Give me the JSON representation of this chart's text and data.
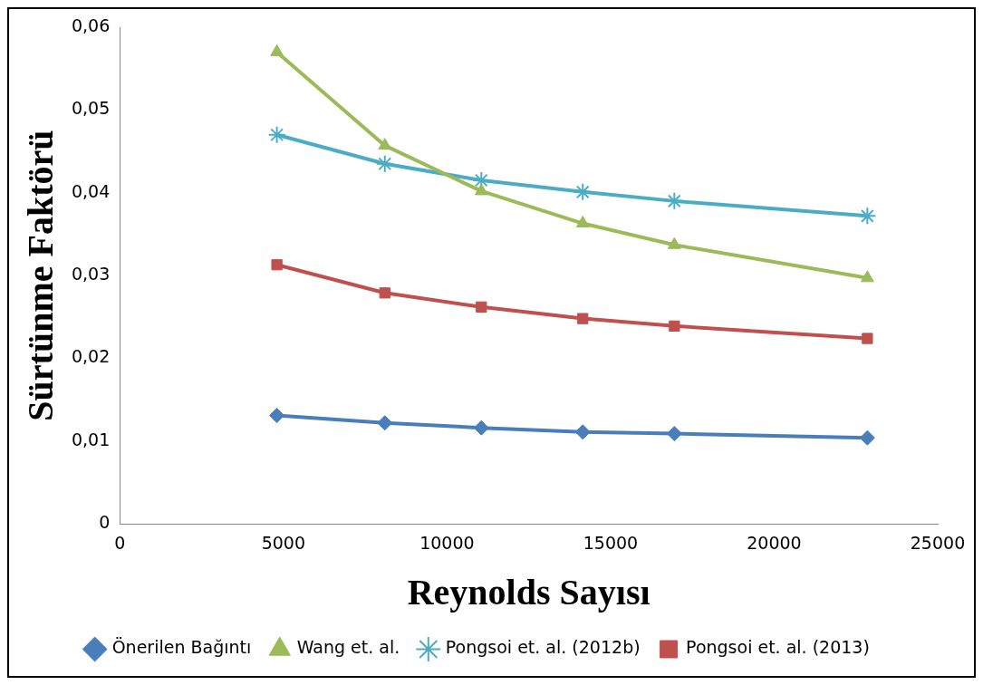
{
  "chart_data": {
    "type": "line",
    "xlabel": "Reynolds Sayısı",
    "ylabel": "Sürtünme Faktörü",
    "x": [
      4800,
      8100,
      11050,
      14150,
      16950,
      22850
    ],
    "series": [
      {
        "name": "Önerilen Bağıntı",
        "color": "#4a7ebb",
        "marker": "diamond",
        "values": [
          0.0131,
          0.0122,
          0.0116,
          0.0111,
          0.0109,
          0.0104
        ]
      },
      {
        "name": "Wang et. al.",
        "color": "#9bbb59",
        "marker": "triangle",
        "values": [
          0.057,
          0.0457,
          0.0402,
          0.0363,
          0.0337,
          0.0297
        ]
      },
      {
        "name": "Pongsoi et. al. (2012b)",
        "color": "#4bacc6",
        "marker": "cross",
        "values": [
          0.047,
          0.0435,
          0.0415,
          0.0401,
          0.039,
          0.0372
        ]
      },
      {
        "name": "Pongsoi et. al. (2013)",
        "color": "#c0504d",
        "marker": "square",
        "values": [
          0.0313,
          0.0279,
          0.0262,
          0.0248,
          0.0239,
          0.0224
        ]
      }
    ],
    "xlim": [
      0,
      25000
    ],
    "xticks": [
      0,
      5000,
      10000,
      15000,
      20000,
      25000
    ],
    "ylim": [
      0,
      0.06
    ],
    "yticks": [
      {
        "value": 0,
        "label": "0"
      },
      {
        "value": 0.01,
        "label": "0,01"
      },
      {
        "value": 0.02,
        "label": "0,02"
      },
      {
        "value": 0.03,
        "label": "0,03"
      },
      {
        "value": 0.04,
        "label": "0,04"
      },
      {
        "value": 0.05,
        "label": "0,05"
      },
      {
        "value": 0.06,
        "label": "0,06"
      }
    ],
    "grid": false,
    "legend": "bottom",
    "line_style": "solid"
  }
}
